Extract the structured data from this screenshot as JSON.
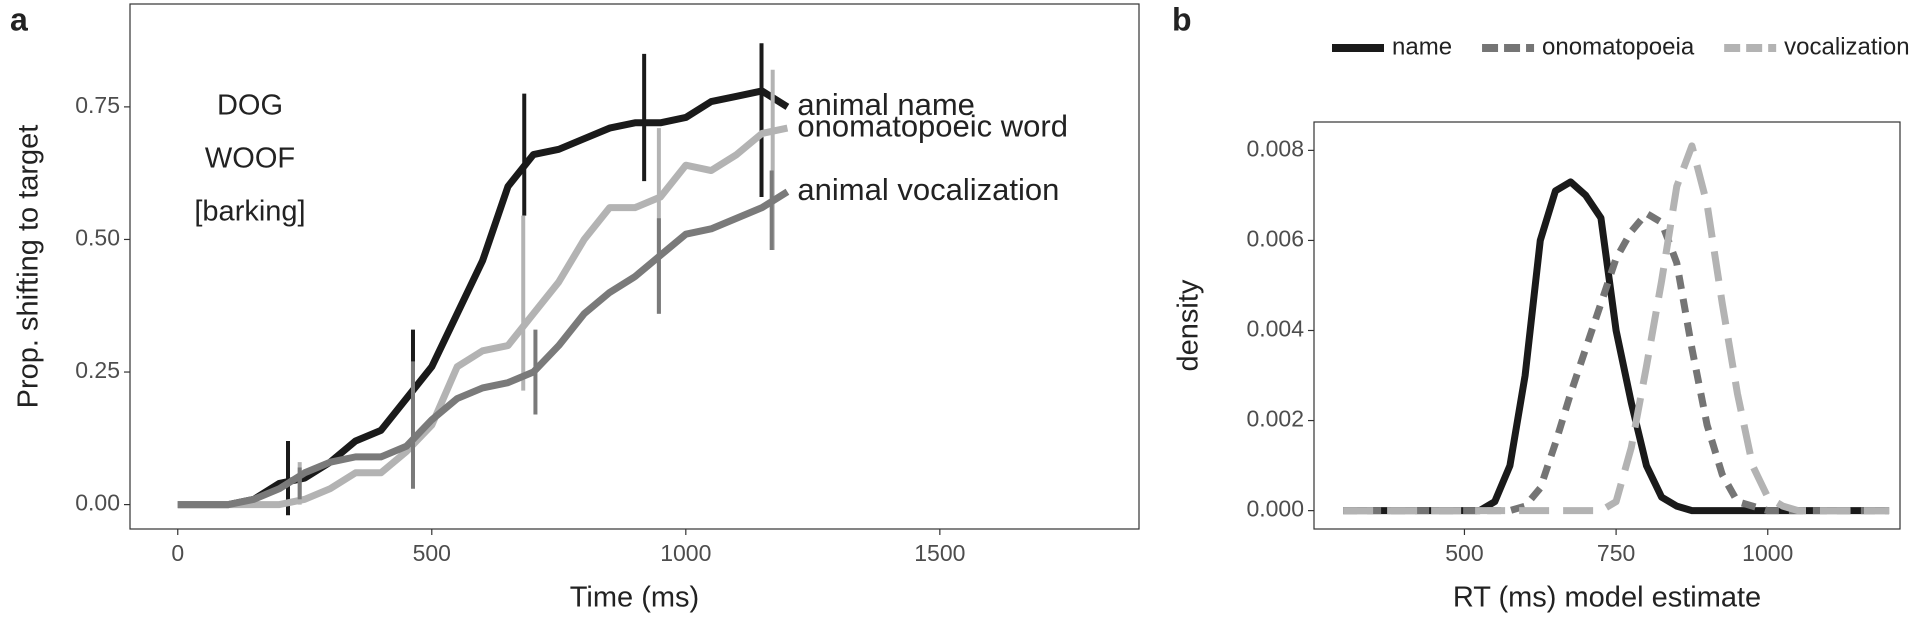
{
  "chart_data": [
    {
      "type": "line",
      "panel_label": "a",
      "x_label": "Time (ms)",
      "y_label": "Prop. shifting to target",
      "annotations": [
        "DOG",
        "WOOF",
        "[barking]"
      ],
      "x": [
        0,
        50,
        100,
        150,
        200,
        250,
        300,
        350,
        400,
        450,
        500,
        550,
        600,
        650,
        700,
        750,
        800,
        850,
        900,
        950,
        1000,
        1050,
        1100,
        1150,
        1200
      ],
      "series": [
        {
          "name": "animal name",
          "color": "#1a1a1a",
          "values": [
            0,
            0,
            0,
            0.01,
            0.04,
            0.05,
            0.08,
            0.12,
            0.14,
            0.2,
            0.26,
            0.36,
            0.46,
            0.6,
            0.66,
            0.67,
            0.69,
            0.71,
            0.72,
            0.72,
            0.73,
            0.76,
            0.77,
            0.78,
            0.75
          ],
          "bars": [
            {
              "x": 217,
              "value": 0.05,
              "error": 0.07
            },
            {
              "x": 463,
              "value": 0.25,
              "error": 0.08
            },
            {
              "x": 682,
              "value": 0.66,
              "error": 0.115
            },
            {
              "x": 918,
              "value": 0.73,
              "error": 0.12
            },
            {
              "x": 1149,
              "value": 0.725,
              "error": 0.145
            }
          ]
        },
        {
          "name": "onomatopoeic word",
          "color": "#b3b3b3",
          "values": [
            0,
            0,
            0,
            0,
            0,
            0.01,
            0.03,
            0.06,
            0.06,
            0.1,
            0.15,
            0.26,
            0.29,
            0.3,
            0.36,
            0.42,
            0.5,
            0.56,
            0.56,
            0.58,
            0.64,
            0.63,
            0.66,
            0.7,
            0.71
          ],
          "bars": [
            {
              "x": 240,
              "value": 0.04,
              "error": 0.04
            },
            {
              "x": 463,
              "value": 0.155,
              "error": 0.105
            },
            {
              "x": 680,
              "value": 0.38,
              "error": 0.165
            },
            {
              "x": 947,
              "value": 0.535,
              "error": 0.175
            },
            {
              "x": 1171,
              "value": 0.65,
              "error": 0.17
            }
          ]
        },
        {
          "name": "animal vocalization",
          "color": "#7a7a7a",
          "values": [
            0,
            0,
            0,
            0.01,
            0.03,
            0.06,
            0.08,
            0.09,
            0.09,
            0.11,
            0.16,
            0.2,
            0.22,
            0.23,
            0.25,
            0.3,
            0.36,
            0.4,
            0.43,
            0.47,
            0.51,
            0.52,
            0.54,
            0.56,
            0.59
          ],
          "bars": [
            {
              "x": 240,
              "value": 0.04,
              "error": 0.03
            },
            {
              "x": 463,
              "value": 0.15,
              "error": 0.12
            },
            {
              "x": 704,
              "value": 0.25,
              "error": 0.08
            },
            {
              "x": 947,
              "value": 0.45,
              "error": 0.09
            },
            {
              "x": 1169,
              "value": 0.555,
              "error": 0.075
            }
          ]
        }
      ],
      "xlim": [
        -94,
        1892
      ],
      "xticks": [
        0,
        500,
        1000,
        1500
      ],
      "ylim": [
        -0.046,
        0.944
      ],
      "yticks": [
        {
          "value": 0,
          "label": "0.00"
        },
        {
          "value": 0.25,
          "label": "0.25"
        },
        {
          "value": 0.5,
          "label": "0.50"
        },
        {
          "value": 0.75,
          "label": "0.75"
        }
      ]
    },
    {
      "type": "density",
      "panel_label": "b",
      "x_label": "RT (ms) model estimate",
      "y_label": "density",
      "legend": "top",
      "x": [
        300,
        325,
        350,
        375,
        400,
        425,
        450,
        475,
        500,
        525,
        550,
        575,
        600,
        625,
        650,
        675,
        700,
        725,
        750,
        775,
        800,
        825,
        850,
        875,
        900,
        925,
        950,
        975,
        1000,
        1025,
        1050,
        1075,
        1100,
        1125,
        1150,
        1175,
        1200
      ],
      "series": [
        {
          "name": "name",
          "color": "#1a1a1a",
          "dash": "solid",
          "values": [
            0,
            0,
            0,
            0,
            0,
            0,
            0,
            0,
            0,
            0,
            0.0002,
            0.001,
            0.003,
            0.006,
            0.0071,
            0.0073,
            0.007,
            0.0065,
            0.004,
            0.0024,
            0.001,
            0.0003,
            0.0001,
            0,
            0,
            0,
            0,
            0,
            0,
            0,
            0,
            0,
            0,
            0,
            0,
            0,
            0
          ]
        },
        {
          "name": "onomatopoeia",
          "color": "#757575",
          "dash": "dotted",
          "values": [
            0,
            0,
            0,
            0,
            0,
            0,
            0,
            0,
            0,
            0,
            0,
            0,
            0.0001,
            0.0005,
            0.0015,
            0.0026,
            0.0036,
            0.0046,
            0.0056,
            0.0062,
            0.0066,
            0.0064,
            0.0055,
            0.0036,
            0.0019,
            0.0008,
            0.0002,
            0.0001,
            0,
            0,
            0,
            0,
            0,
            0,
            0,
            0,
            0
          ]
        },
        {
          "name": "vocalization",
          "color": "#b3b3b3",
          "dash": "dashed",
          "values": [
            0,
            0,
            0,
            0,
            0,
            0,
            0,
            0,
            0,
            0,
            0,
            0,
            0,
            0,
            0,
            0,
            0,
            0,
            0.0002,
            0.0014,
            0.0032,
            0.0051,
            0.0072,
            0.0081,
            0.0068,
            0.0046,
            0.0026,
            0.001,
            0.0003,
            0.0001,
            0,
            0,
            0,
            0,
            0,
            0,
            0
          ]
        }
      ],
      "xlim": [
        252,
        1218
      ],
      "xticks": [
        500,
        750,
        1000
      ],
      "ylim": [
        -0.000408,
        0.00863
      ],
      "yticks": [
        {
          "value": 0,
          "label": "0.000"
        },
        {
          "value": 0.002,
          "label": "0.002"
        },
        {
          "value": 0.004,
          "label": "0.004"
        },
        {
          "value": 0.006,
          "label": "0.006"
        },
        {
          "value": 0.008,
          "label": "0.008"
        }
      ]
    }
  ]
}
